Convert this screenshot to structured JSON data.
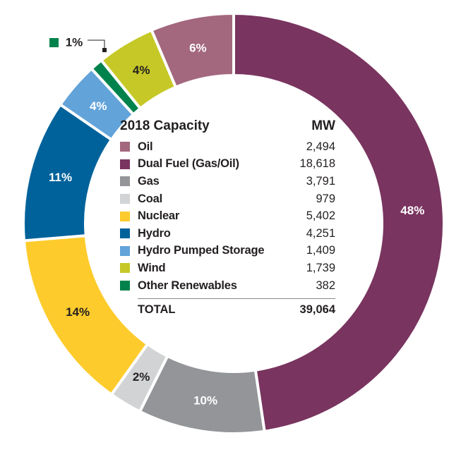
{
  "chart_data": {
    "type": "pie",
    "donut": true,
    "title": "2018 Capacity",
    "value_header": "MW",
    "slices": [
      {
        "name": "Dual Fuel (Gas/Oil)",
        "value": 18618,
        "label": "48%",
        "color": "#79345f",
        "label_color": "#ffffff"
      },
      {
        "name": "Gas",
        "value": 3791,
        "label": "10%",
        "color": "#939598",
        "label_color": "#ffffff"
      },
      {
        "name": "Coal",
        "value": 979,
        "label": "2%",
        "color": "#d1d3d4",
        "label_color": "#231f20"
      },
      {
        "name": "Nuclear",
        "value": 5402,
        "label": "14%",
        "color": "#fdcb2b",
        "label_color": "#231f20"
      },
      {
        "name": "Hydro",
        "value": 4251,
        "label": "11%",
        "color": "#00629b",
        "label_color": "#ffffff"
      },
      {
        "name": "Hydro Pumped Storage",
        "value": 1409,
        "label": "4%",
        "color": "#62a3d9",
        "label_color": "#ffffff"
      },
      {
        "name": "Other Renewables",
        "value": 382,
        "label": "1%",
        "color": "#00824c",
        "label_color": "#231f20",
        "callout": true
      },
      {
        "name": "Wind",
        "value": 1739,
        "label": "4%",
        "color": "#c6c827",
        "label_color": "#231f20"
      },
      {
        "name": "Oil",
        "value": 2494,
        "label": "6%",
        "color": "#a3677e",
        "label_color": "#ffffff"
      }
    ],
    "legend": [
      {
        "name": "Oil",
        "value": "2,494",
        "color": "#a3677e"
      },
      {
        "name": "Dual Fuel (Gas/Oil)",
        "value": "18,618",
        "color": "#79345f"
      },
      {
        "name": "Gas",
        "value": "3,791",
        "color": "#939598"
      },
      {
        "name": "Coal",
        "value": "979",
        "color": "#d1d3d4"
      },
      {
        "name": "Nuclear",
        "value": "5,402",
        "color": "#fdcb2b"
      },
      {
        "name": "Hydro",
        "value": "4,251",
        "color": "#00629b"
      },
      {
        "name": "Hydro Pumped Storage",
        "value": "1,409",
        "color": "#62a3d9"
      },
      {
        "name": "Wind",
        "value": "1,739",
        "color": "#c6c827"
      },
      {
        "name": "Other Renewables",
        "value": "382",
        "color": "#00824c"
      }
    ],
    "total_label": "TOTAL",
    "total_value": "39,064",
    "legend_placement": "center"
  }
}
